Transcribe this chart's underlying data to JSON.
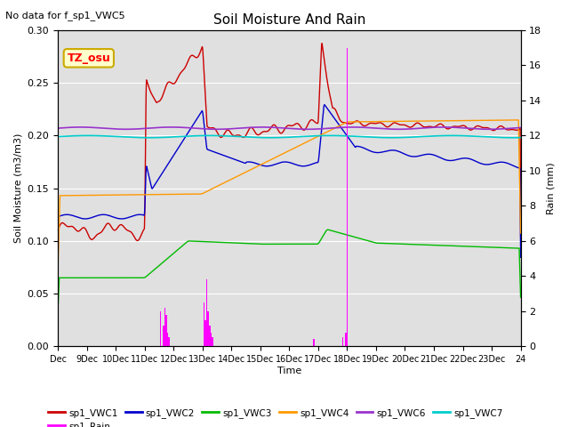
{
  "title": "Soil Moisture And Rain",
  "no_data_text": "No data for f_sp1_VWC5",
  "station_label": "TZ_osu",
  "xlabel": "Time",
  "ylabel_left": "Soil Moisture (m3/m3)",
  "ylabel_right": "Rain (mm)",
  "ylim_left": [
    0.0,
    0.3
  ],
  "ylim_right": [
    0,
    18
  ],
  "yticks_left": [
    0.0,
    0.05,
    0.1,
    0.15,
    0.2,
    0.25,
    0.3
  ],
  "yticks_right": [
    0,
    2,
    4,
    6,
    8,
    10,
    12,
    14,
    16,
    18
  ],
  "xtick_labels": [
    "Dec",
    "9Dec",
    "10Dec",
    "11Dec",
    "12Dec",
    "13Dec",
    "14Dec",
    "15Dec",
    "16Dec",
    "17Dec",
    "18Dec",
    "19Dec",
    "20Dec",
    "21Dec",
    "22Dec",
    "23Dec",
    "24"
  ],
  "bg_color": "#e0e0e0",
  "plot_bg": "#e0e0e0",
  "colors": {
    "VWC1": "#cc0000",
    "VWC2": "#0000cc",
    "VWC3": "#00bb00",
    "VWC4": "#ff9900",
    "VWC6": "#9933cc",
    "VWC7": "#00cccc",
    "Rain": "#ff00ff"
  },
  "legend_colors": {
    "VWC1": "#cc0000",
    "VWC2": "#0000cc",
    "VWC3": "#00bb00",
    "VWC4": "#ff9900",
    "VWC6": "#9933cc",
    "VWC7": "#00cccc",
    "Rain": "#ff00ff"
  },
  "station_box_facecolor": "#ffffcc",
  "station_box_edgecolor": "#ccaa00"
}
